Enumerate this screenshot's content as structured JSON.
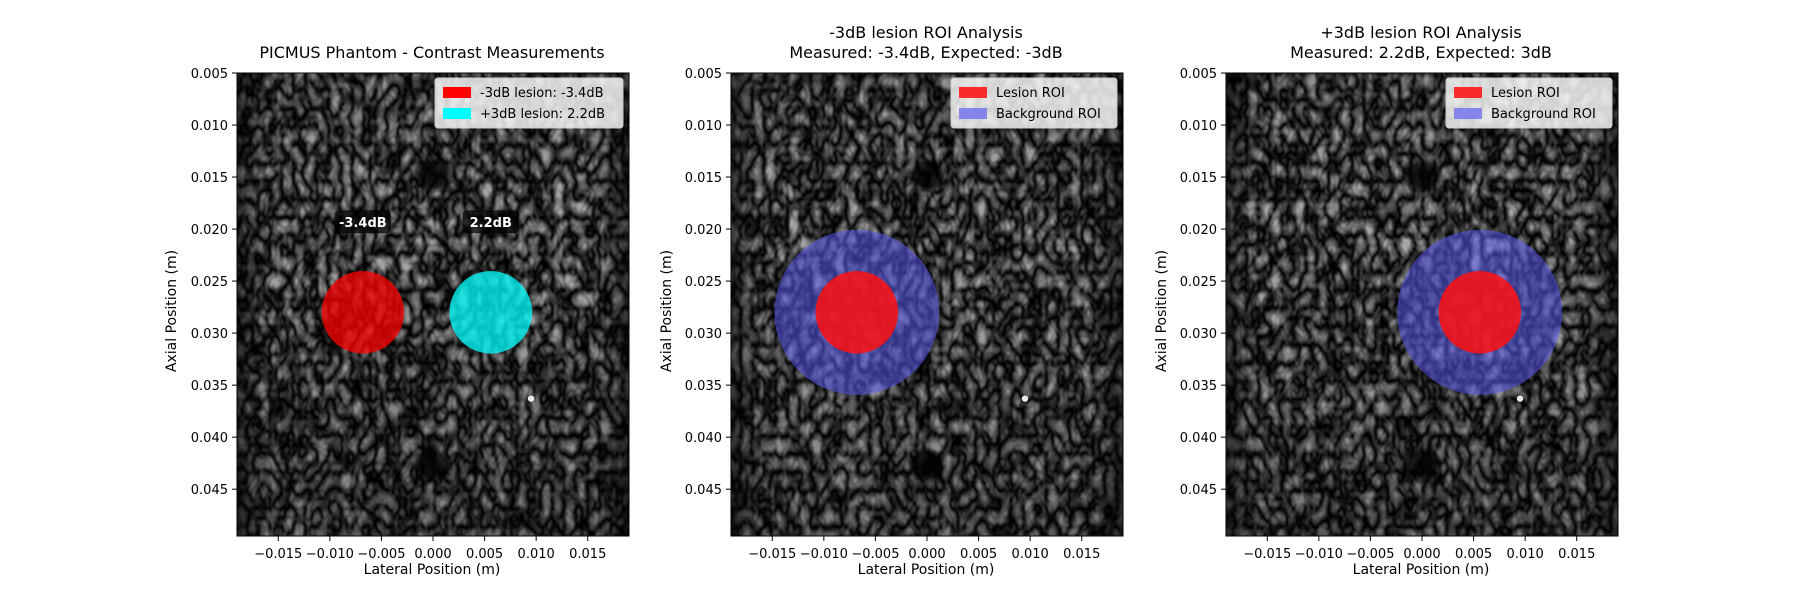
{
  "chart_data": [
    {
      "type": "heatmap",
      "title": "PICMUS Phantom - Contrast Measurements",
      "xlabel": "Lateral Position (m)",
      "ylabel": "Axial Position (m)",
      "xlim": [
        -0.019,
        0.019
      ],
      "ylim": [
        0.0495,
        0.005
      ],
      "x_ticks": [
        "−0.015",
        "−0.010",
        "−0.005",
        "0.000",
        "0.005",
        "0.010",
        "0.015"
      ],
      "y_ticks": [
        "0.005",
        "0.010",
        "0.015",
        "0.020",
        "0.025",
        "0.030",
        "0.035",
        "0.040",
        "0.045"
      ],
      "legend_position": "top-right",
      "legend": [
        {
          "label": "-3dB lesion: -3.4dB",
          "color": "#ff0000"
        },
        {
          "label": "+3dB lesion: 2.2dB",
          "color": "#00ffff"
        }
      ],
      "lesions": [
        {
          "name": "-3dB lesion",
          "x": -0.0068,
          "z": 0.028,
          "radius": 0.004,
          "color": "#ff0000",
          "measured_db": -3.4,
          "label": "-3.4dB"
        },
        {
          "name": "+3dB lesion",
          "x": 0.0056,
          "z": 0.028,
          "radius": 0.004,
          "color": "#00ffff",
          "measured_db": 2.2,
          "label": "2.2dB"
        }
      ],
      "label_z": 0.0193
    },
    {
      "type": "heatmap",
      "title_line1": "-3dB lesion ROI Analysis",
      "title_line2": "Measured: -3.4dB, Expected: -3dB",
      "xlabel": "Lateral Position (m)",
      "ylabel": "Axial Position (m)",
      "xlim": [
        -0.019,
        0.019
      ],
      "ylim": [
        0.0495,
        0.005
      ],
      "x_ticks": [
        "−0.015",
        "−0.010",
        "−0.005",
        "0.000",
        "0.005",
        "0.010",
        "0.015"
      ],
      "y_ticks": [
        "0.005",
        "0.010",
        "0.015",
        "0.020",
        "0.025",
        "0.030",
        "0.035",
        "0.040",
        "0.045"
      ],
      "legend_position": "top-right",
      "legend": [
        {
          "label": "Lesion ROI",
          "color": "#ff0000"
        },
        {
          "label": "Background ROI",
          "color": "#7070ee"
        }
      ],
      "roi": {
        "x": -0.0068,
        "z": 0.028,
        "lesion_radius": 0.004,
        "background_radius": 0.008
      }
    },
    {
      "type": "heatmap",
      "title_line1": "+3dB lesion ROI Analysis",
      "title_line2": "Measured: 2.2dB, Expected: 3dB",
      "xlabel": "Lateral Position (m)",
      "ylabel": "Axial Position (m)",
      "xlim": [
        -0.019,
        0.019
      ],
      "ylim": [
        0.0495,
        0.005
      ],
      "x_ticks": [
        "−0.015",
        "−0.010",
        "−0.005",
        "0.000",
        "0.005",
        "0.010",
        "0.015"
      ],
      "y_ticks": [
        "0.005",
        "0.010",
        "0.015",
        "0.020",
        "0.025",
        "0.030",
        "0.035",
        "0.040",
        "0.045"
      ],
      "legend_position": "top-right",
      "legend": [
        {
          "label": "Lesion ROI",
          "color": "#ff0000"
        },
        {
          "label": "Background ROI",
          "color": "#7070ee"
        }
      ],
      "roi": {
        "x": 0.0056,
        "z": 0.028,
        "lesion_radius": 0.004,
        "background_radius": 0.008
      }
    }
  ],
  "phantom": {
    "anechoic_cysts": [
      {
        "x": 0.0,
        "z": 0.0148
      },
      {
        "x": 0.0,
        "z": 0.0427
      }
    ],
    "bright_points": [
      {
        "x": 0.0095,
        "z": 0.0363
      }
    ]
  }
}
